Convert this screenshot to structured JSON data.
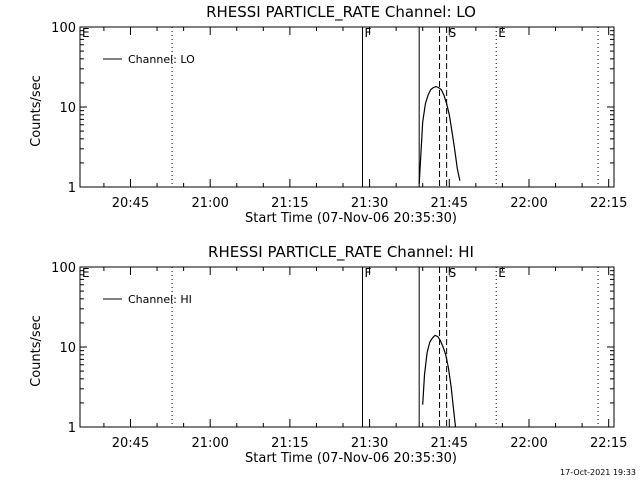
{
  "chart_data": [
    {
      "type": "line",
      "title": "RHESSI PARTICLE_RATE Channel: LO",
      "xlabel": "Start Time (07-Nov-06 20:35:30)",
      "ylabel": "Counts/sec",
      "y_scale": "log",
      "ylim": [
        1,
        100
      ],
      "y_ticks": [
        "1",
        "10",
        "100"
      ],
      "xlim": [
        "20:35:30",
        "22:16:00"
      ],
      "x_ticks": [
        "20:45",
        "21:00",
        "21:15",
        "21:30",
        "21:45",
        "22:00",
        "22:15"
      ],
      "grid": false,
      "legend_position": "top-left",
      "series": [
        {
          "name": "Channel: LO",
          "x": [
            "21:39:20",
            "21:39:40",
            "21:40:00",
            "21:40:30",
            "21:41:00",
            "21:41:30",
            "21:42:00",
            "21:42:30",
            "21:43:00",
            "21:43:30",
            "21:44:00",
            "21:44:30",
            "21:45:00",
            "21:45:30",
            "21:46:00",
            "21:46:30",
            "21:47:00"
          ],
          "y": [
            1.1,
            2.6,
            6.5,
            11,
            14,
            16.5,
            17.5,
            18,
            17.5,
            16.5,
            14,
            11,
            8,
            5,
            3,
            1.7,
            1.2
          ]
        }
      ],
      "vertical_markers": [
        {
          "label": "E",
          "time": "20:35:30",
          "style": "dotted"
        },
        {
          "label": "",
          "time": "20:52:50",
          "style": "dotted"
        },
        {
          "label": "F",
          "time": "21:28:40",
          "style": "solid"
        },
        {
          "label": "",
          "time": "21:39:20",
          "style": "solid"
        },
        {
          "label": "",
          "time": "21:43:10",
          "style": "dashed"
        },
        {
          "label": "S",
          "time": "21:44:30",
          "style": "dashed"
        },
        {
          "label": "E",
          "time": "21:53:50",
          "style": "dotted"
        },
        {
          "label": "",
          "time": "22:13:00",
          "style": "dotted"
        }
      ]
    },
    {
      "type": "line",
      "title": "RHESSI PARTICLE_RATE Channel: HI",
      "xlabel": "Start Time (07-Nov-06 20:35:30)",
      "ylabel": "Counts/sec",
      "y_scale": "log",
      "ylim": [
        1,
        100
      ],
      "y_ticks": [
        "1",
        "10",
        "100"
      ],
      "xlim": [
        "20:35:30",
        "22:16:00"
      ],
      "x_ticks": [
        "20:45",
        "21:00",
        "21:15",
        "21:30",
        "21:45",
        "22:00",
        "22:15"
      ],
      "grid": false,
      "legend_position": "top-left",
      "series": [
        {
          "name": "Channel: HI",
          "x": [
            "21:40:00",
            "21:40:20",
            "21:40:50",
            "21:41:20",
            "21:41:50",
            "21:42:20",
            "21:42:50",
            "21:43:20",
            "21:43:50",
            "21:44:20",
            "21:44:50",
            "21:45:20",
            "21:45:50",
            "21:46:10"
          ],
          "y": [
            1.9,
            4.5,
            8.5,
            11.5,
            13,
            14,
            13.5,
            12,
            10,
            8,
            5.5,
            3.2,
            1.6,
            1.0
          ]
        }
      ],
      "vertical_markers": [
        {
          "label": "E",
          "time": "20:35:30",
          "style": "dotted"
        },
        {
          "label": "",
          "time": "20:52:50",
          "style": "dotted"
        },
        {
          "label": "F",
          "time": "21:28:40",
          "style": "solid"
        },
        {
          "label": "",
          "time": "21:39:20",
          "style": "solid"
        },
        {
          "label": "",
          "time": "21:43:10",
          "style": "dashed"
        },
        {
          "label": "S",
          "time": "21:44:30",
          "style": "dashed"
        },
        {
          "label": "E",
          "time": "21:53:50",
          "style": "dotted"
        },
        {
          "label": "",
          "time": "22:13:00",
          "style": "dotted"
        }
      ]
    }
  ],
  "footer": {
    "timestamp": "17-Oct-2021 19:33"
  }
}
